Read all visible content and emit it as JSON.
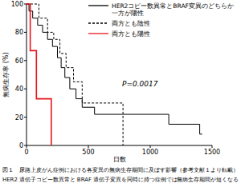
{
  "chart_data": {
    "type": "step",
    "y_label": "無病生存率 (%)",
    "x_label": "日数",
    "annotations": [
      "P=0.0017"
    ],
    "captions": [
      "図１　尿路上皮がん症例における各変異の無病生存期間に及ぼす影響（参考文献１より転載）",
      "HER2 遺伝子コピー数異常と BRAF 遺伝子変異を同時に持つ症例では無病生存期間が短くなる"
    ],
    "xlim": [
      0,
      1500
    ],
    "xticks": [
      0,
      500,
      1000,
      1500
    ],
    "ylim": [
      0,
      100
    ],
    "yticks": [
      0,
      20,
      40,
      60,
      80,
      100
    ],
    "legend": "top-right",
    "series": [
      {
        "name": "HER2コピー数異常とBRAF変異のどちらか一方が陽性",
        "color": "#000000",
        "line_style": "solid",
        "x": [
          0,
          20,
          50,
          90,
          130,
          170,
          210,
          250,
          280,
          310,
          350,
          400,
          450,
          550,
          1150,
          1400,
          1420
        ],
        "values": [
          100,
          95,
          90,
          85,
          80,
          75,
          70,
          62,
          55,
          48,
          40,
          33,
          27,
          22,
          15,
          8,
          8
        ]
      },
      {
        "name": "両方とも陰性",
        "color": "#000000",
        "line_style": "dashed",
        "x": [
          0,
          100,
          170,
          220,
          270,
          320,
          380,
          450,
          780
        ],
        "values": [
          100,
          90,
          80,
          75,
          65,
          55,
          45,
          30,
          0
        ]
      },
      {
        "name": "両方とも陽性",
        "color": "#e8141c",
        "line_style": "solid",
        "x": [
          0,
          30,
          80,
          200
        ],
        "values": [
          100,
          67,
          33,
          0
        ]
      }
    ]
  }
}
